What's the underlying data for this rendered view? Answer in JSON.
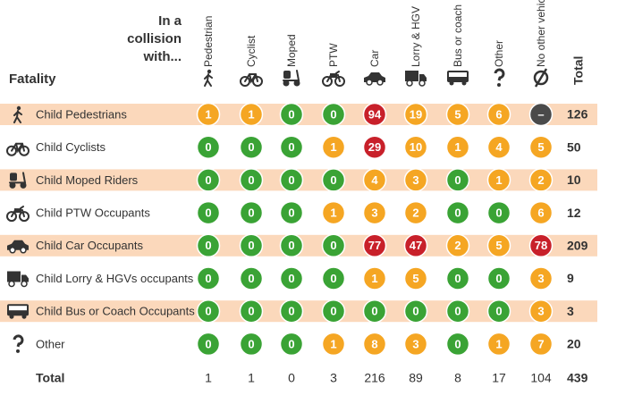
{
  "header": {
    "corner": "In a collision with...",
    "row_header": "Fatality"
  },
  "table": {
    "columns": [
      "Pedestrian",
      "Cyclist",
      "Moped",
      "PTW",
      "Car",
      "Lorry & HGV",
      "Bus or coach",
      "Other",
      "No other vehicle",
      "Total"
    ],
    "rows": [
      {
        "label": "Child Pedestrians",
        "cells": [
          1,
          1,
          0,
          0,
          94,
          19,
          5,
          6,
          "–"
        ],
        "total": 126
      },
      {
        "label": "Child Cyclists",
        "cells": [
          0,
          0,
          0,
          1,
          29,
          10,
          1,
          4,
          5
        ],
        "total": 50
      },
      {
        "label": "Child Moped Riders",
        "cells": [
          0,
          0,
          0,
          0,
          4,
          3,
          0,
          1,
          2
        ],
        "total": 10
      },
      {
        "label": "Child PTW Occupants",
        "cells": [
          0,
          0,
          0,
          1,
          3,
          2,
          0,
          0,
          6
        ],
        "total": 12
      },
      {
        "label": "Child Car Occupants",
        "cells": [
          0,
          0,
          0,
          0,
          77,
          47,
          2,
          5,
          78
        ],
        "total": 209
      },
      {
        "label": "Child Lorry & HGVs occupants",
        "cells": [
          0,
          0,
          0,
          0,
          1,
          5,
          0,
          0,
          3
        ],
        "total": 9
      },
      {
        "label": "Child Bus or Coach Occupants",
        "cells": [
          0,
          0,
          0,
          0,
          0,
          0,
          0,
          0,
          3
        ],
        "total": 3
      },
      {
        "label": "Other",
        "cells": [
          0,
          0,
          0,
          1,
          8,
          3,
          0,
          1,
          7
        ],
        "total": 20
      }
    ],
    "totals": {
      "label": "Total",
      "cells": [
        1,
        1,
        0,
        3,
        216,
        89,
        8,
        17,
        104
      ],
      "total": 439
    }
  }
}
